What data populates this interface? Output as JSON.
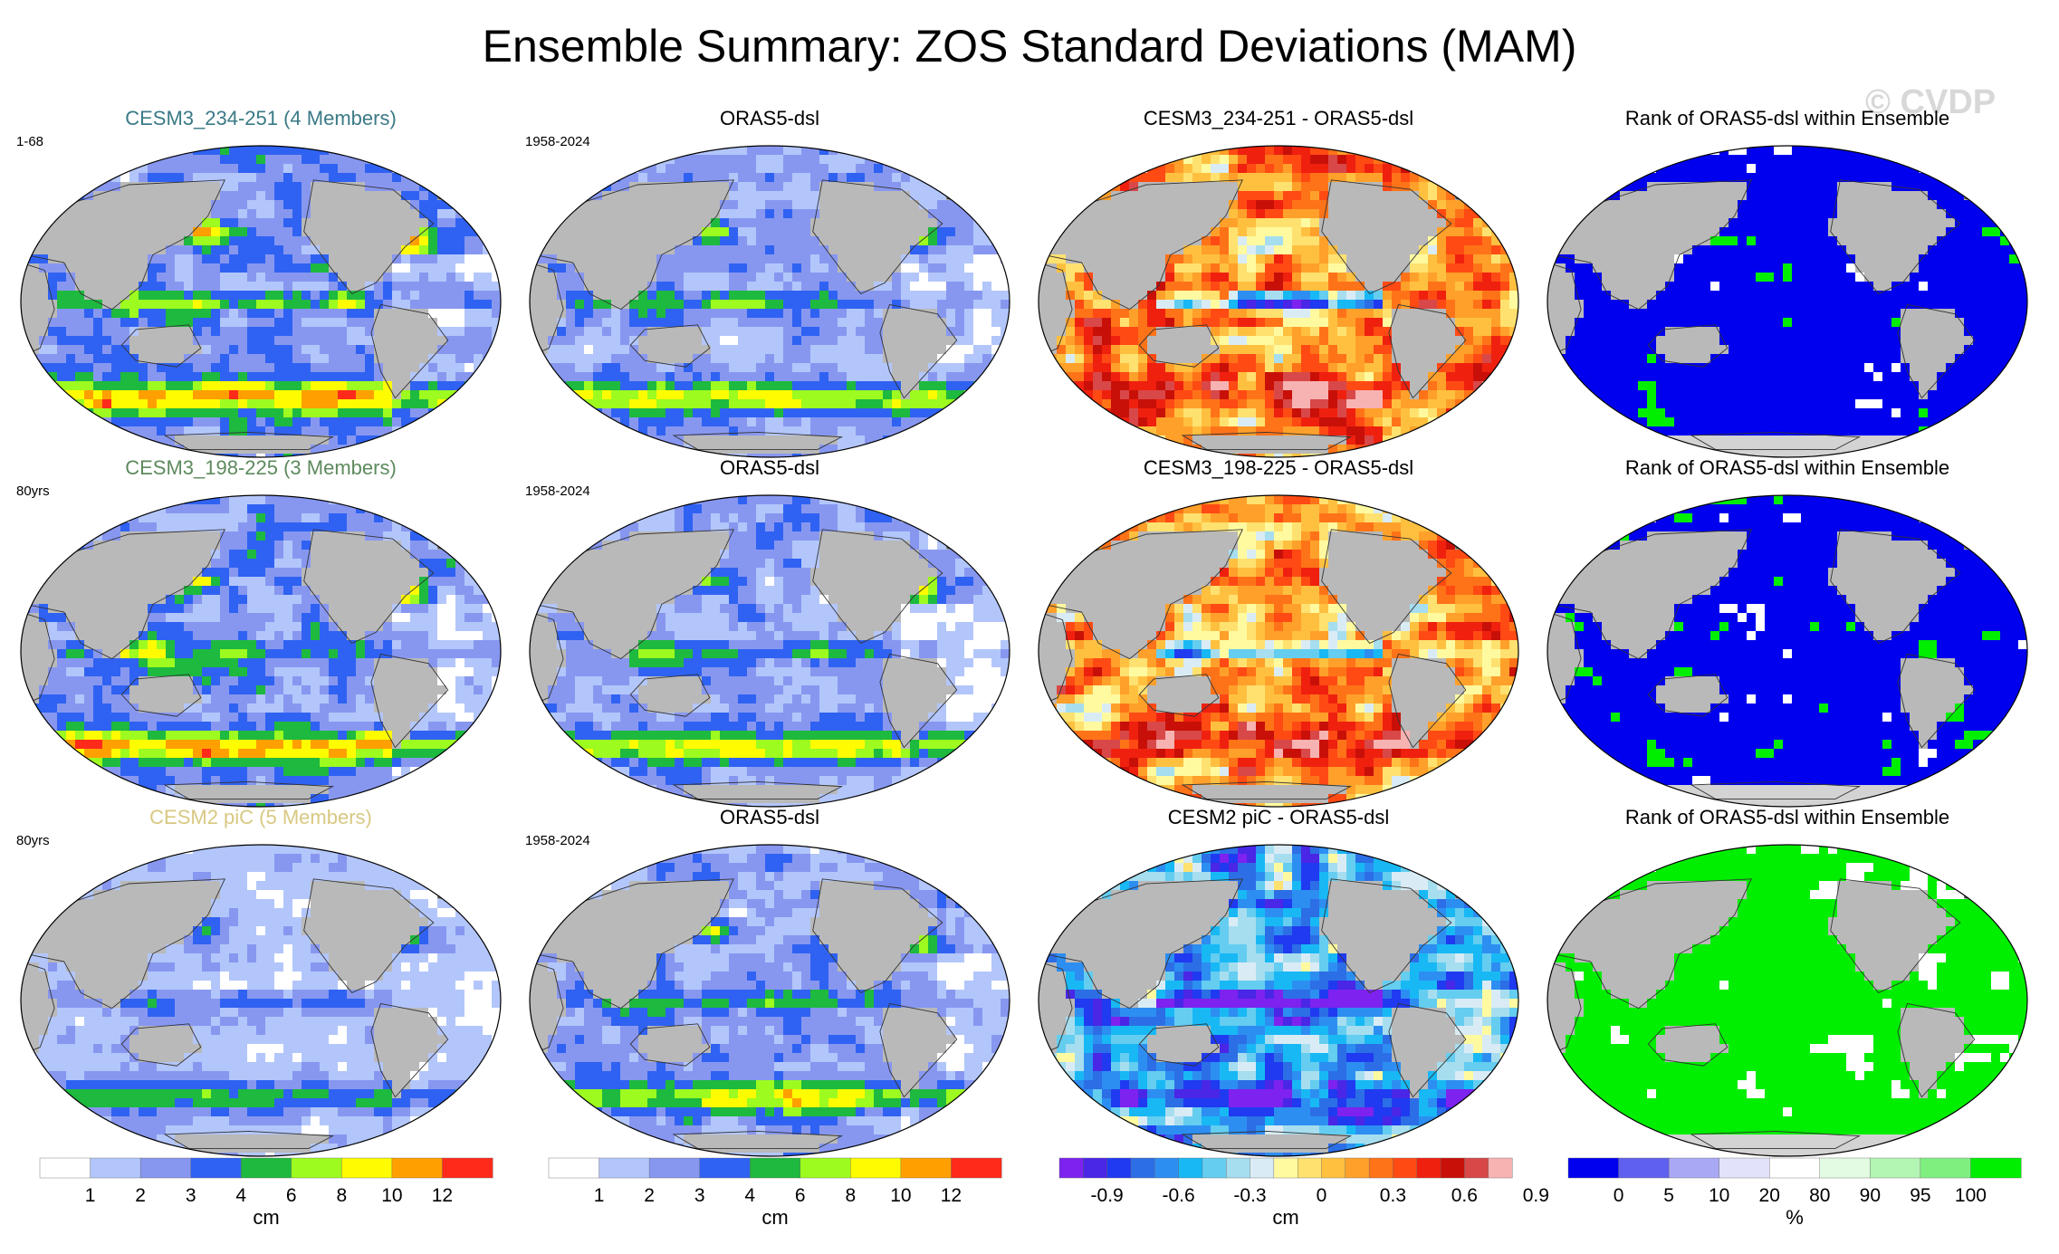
{
  "figure": {
    "title": "Ensemble Summary: ZOS Standard Deviations (MAM)",
    "watermark": "© CVDP"
  },
  "colors": {
    "land": "#b9b9b9",
    "antarctic_rank": "#d3d3d3",
    "std_levels": [
      "#ffffff",
      "#b3c6fb",
      "#8797f0",
      "#2f62f2",
      "#1eb93f",
      "#9dfb1f",
      "#fffb00",
      "#ffa000",
      "#ff2a1a"
    ],
    "diff_levels": [
      "#7d22ef",
      "#4a26e6",
      "#1f3af0",
      "#2c6ee6",
      "#2d8ef2",
      "#18b8f5",
      "#64cdf0",
      "#a6def0",
      "#d9ecf5",
      "#fffaa0",
      "#ffe170",
      "#ffc040",
      "#ffa02a",
      "#ff7318",
      "#ff4a14",
      "#f0200f",
      "#c81008",
      "#d84848",
      "#f7b2b2"
    ],
    "rank_levels": [
      "#0000ee",
      "#6060f0",
      "#a8a8f4",
      "#e2e2fb",
      "#ffffff",
      "#e2fbe2",
      "#b3f5b3",
      "#7ff07f",
      "#00ee00"
    ]
  },
  "chart_data": [
    {
      "type": "heatmap",
      "id": "r1c1",
      "title": "CESM3_234-251 (4 Members)",
      "title_color": "#3a7a86",
      "period": "1-68",
      "field": "std",
      "amp": 0.95,
      "seed": 1
    },
    {
      "type": "heatmap",
      "id": "r1c2",
      "title": "ORAS5-dsl",
      "title_color": "#000000",
      "period": "1958-2024",
      "field": "std",
      "amp": 0.78,
      "seed": 2
    },
    {
      "type": "heatmap",
      "id": "r1c3",
      "title": "CESM3_234-251 - ORAS5-dsl",
      "title_color": "#000000",
      "period": "",
      "field": "diff",
      "bias": 0.35,
      "seed": 3
    },
    {
      "type": "heatmap",
      "id": "r1c4",
      "title": "Rank of ORAS5-dsl within Ensemble",
      "title_color": "#000000",
      "period": "",
      "field": "rank",
      "green_frac": 0.18,
      "seed": 4
    },
    {
      "type": "heatmap",
      "id": "r2c1",
      "title": "CESM3_198-225 (3 Members)",
      "title_color": "#5d8a5d",
      "period": "80yrs",
      "field": "std",
      "amp": 0.92,
      "seed": 5
    },
    {
      "type": "heatmap",
      "id": "r2c2",
      "title": "ORAS5-dsl",
      "title_color": "#000000",
      "period": "1958-2024",
      "field": "std",
      "amp": 0.78,
      "seed": 6
    },
    {
      "type": "heatmap",
      "id": "r2c3",
      "title": "CESM3_198-225 - ORAS5-dsl",
      "title_color": "#000000",
      "period": "",
      "field": "diff",
      "bias": 0.3,
      "seed": 7
    },
    {
      "type": "heatmap",
      "id": "r2c4",
      "title": "Rank of ORAS5-dsl within Ensemble",
      "title_color": "#000000",
      "period": "",
      "field": "rank",
      "green_frac": 0.22,
      "seed": 8
    },
    {
      "type": "heatmap",
      "id": "r3c1",
      "title": "CESM2 piC (5 Members)",
      "title_color": "#d8c882",
      "period": "80yrs",
      "field": "std",
      "amp": 0.55,
      "seed": 9
    },
    {
      "type": "heatmap",
      "id": "r3c2",
      "title": "ORAS5-dsl",
      "title_color": "#000000",
      "period": "1958-2024",
      "field": "std",
      "amp": 0.78,
      "seed": 10
    },
    {
      "type": "heatmap",
      "id": "r3c3",
      "title": "CESM2 piC - ORAS5-dsl",
      "title_color": "#000000",
      "period": "",
      "field": "diff",
      "bias": -0.45,
      "seed": 11
    },
    {
      "type": "heatmap",
      "id": "r3c4",
      "title": "Rank of ORAS5-dsl within Ensemble",
      "title_color": "#000000",
      "period": "",
      "field": "rank",
      "green_frac": 0.8,
      "seed": 12
    }
  ],
  "colorbars": [
    {
      "id": "cb1",
      "kind": "std",
      "ticks": [
        "1",
        "2",
        "3",
        "4",
        "6",
        "8",
        "10",
        "12"
      ],
      "unit": "cm"
    },
    {
      "id": "cb2",
      "kind": "std",
      "ticks": [
        "1",
        "2",
        "3",
        "4",
        "6",
        "8",
        "10",
        "12"
      ],
      "unit": "cm"
    },
    {
      "id": "cb3",
      "kind": "diff",
      "ticks": [
        "-0.9",
        "-0.6",
        "-0.3",
        "0",
        "0.3",
        "0.6",
        "0.9"
      ],
      "unit": "cm"
    },
    {
      "id": "cb4",
      "kind": "rank",
      "ticks": [
        "0",
        "5",
        "10",
        "20",
        "80",
        "90",
        "95",
        "100"
      ],
      "unit": "%"
    }
  ]
}
